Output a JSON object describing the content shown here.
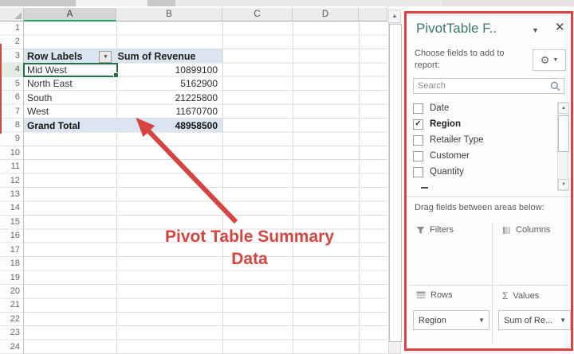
{
  "spreadsheet": {
    "columns": [
      "A",
      "B",
      "C",
      "D",
      ""
    ],
    "row_count": 24,
    "selected_cell_row": 4,
    "pivot": {
      "header": {
        "label": "Row Labels",
        "value": "Sum of Revenue"
      },
      "rows": [
        {
          "label": "Mid West",
          "value": "10899100"
        },
        {
          "label": "North East",
          "value": "5162900"
        },
        {
          "label": "South",
          "value": "21225800"
        },
        {
          "label": "West",
          "value": "11670700"
        }
      ],
      "total": {
        "label": "Grand Total",
        "value": "48958500"
      }
    }
  },
  "annotation": {
    "line1": "Pivot Table Summary",
    "line2": "Data"
  },
  "panel": {
    "title": "PivotTable F..",
    "title_caret": "▼",
    "close_glyph": "✕",
    "choose_text": "Choose fields to add to report:",
    "gear_glyph": "⚙",
    "gear_caret": "▼",
    "search_placeholder": "Search",
    "fields": [
      {
        "label": "Date",
        "checked": false
      },
      {
        "label": "Region",
        "checked": true
      },
      {
        "label": "Retailer Type",
        "checked": false
      },
      {
        "label": "Customer",
        "checked": false
      },
      {
        "label": "Quantity",
        "checked": false
      }
    ],
    "check_glyph": "✓",
    "scroll_up_glyph": "▲",
    "scroll_down_glyph": "▼",
    "drag_text": "Drag fields between areas below:",
    "areas": {
      "filters_label": "Filters",
      "columns_label": "Columns",
      "rows_label": "Rows",
      "values_label": "Values",
      "sigma_glyph": "Σ",
      "rows_value": "Region",
      "values_value": "Sum of Re...",
      "dropdown_caret": "▼"
    }
  },
  "colors": {
    "excel_green": "#217346",
    "annotation_red": "#d6443f",
    "panel_border_red": "#e0413c",
    "pivot_band_blue": "#dbe5f1"
  }
}
